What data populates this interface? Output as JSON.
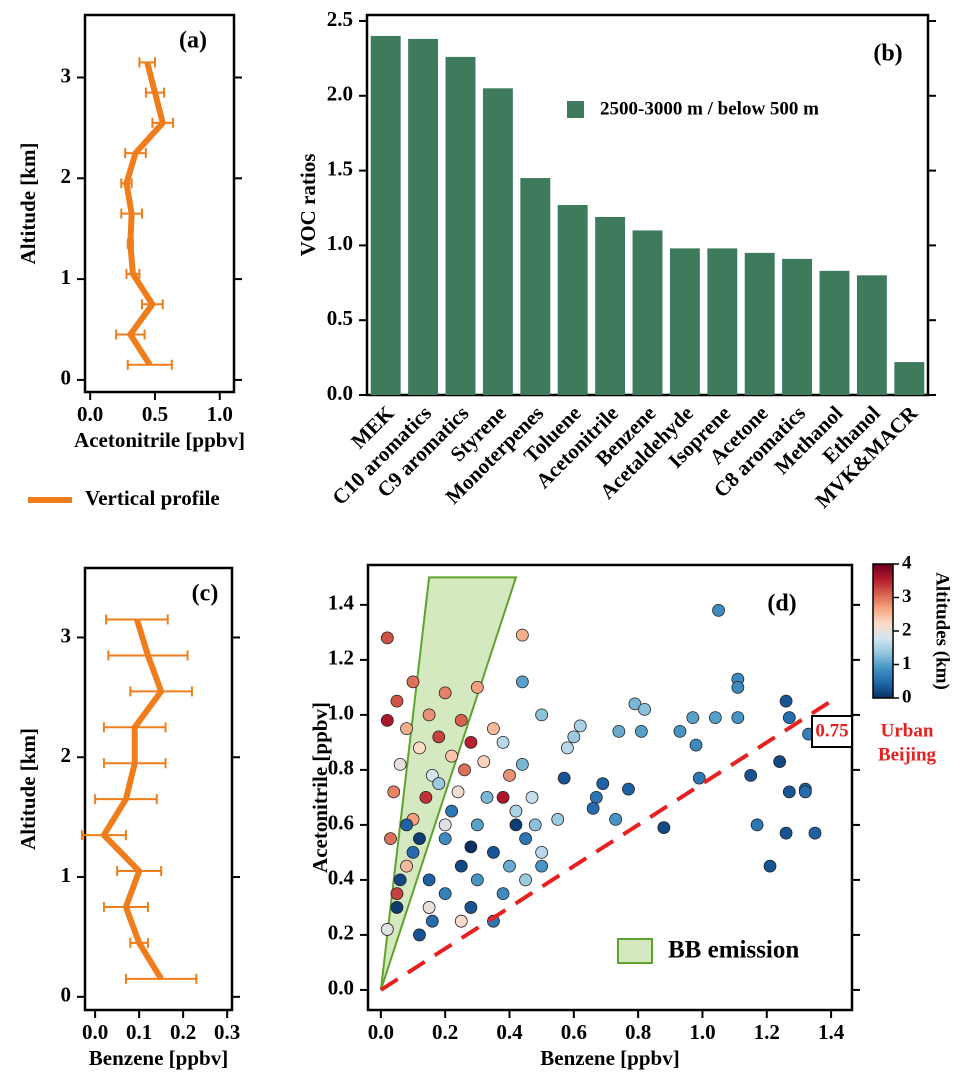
{
  "chart_data": [
    {
      "type": "profile",
      "panel_label": "(a)",
      "xlabel": "Acetonitrile [ppbv]",
      "ylabel": "Altitude [km]",
      "xlim": [
        -0.04,
        1.11
      ],
      "ylim": [
        -0.12,
        3.62
      ],
      "xticks": [
        {
          "value": 0,
          "label": "0.0"
        },
        {
          "value": 0.5,
          "label": "0.5"
        },
        {
          "value": 1,
          "label": "1.0"
        }
      ],
      "yticks": [
        0,
        1,
        2,
        3
      ],
      "y": [
        0.15,
        0.45,
        0.75,
        1.05,
        1.35,
        1.65,
        1.95,
        2.25,
        2.55,
        2.85,
        3.15
      ],
      "series": [
        {
          "name": "Vertical profile",
          "color": "#f07d1c",
          "values": [
            0.46,
            0.31,
            0.48,
            0.33,
            0.31,
            0.32,
            0.28,
            0.35,
            0.56,
            0.5,
            0.44
          ],
          "errors": [
            0.17,
            0.11,
            0.08,
            0.05,
            0.02,
            0.08,
            0.04,
            0.08,
            0.08,
            0.07,
            0.06
          ]
        }
      ]
    },
    {
      "type": "bar",
      "panel_label": "(b)",
      "ylabel": "VOC ratios",
      "color": "#3d7b5c",
      "legend_label": "2500-3000 m / below 500 m",
      "categories": [
        "MEK",
        "C10 aromatics",
        "C9 aromatics",
        "Styrene",
        "Monoterpenes",
        "Toluene",
        "Acetonitrile",
        "Benzene",
        "Acetaldehyde",
        "Isoprene",
        "Acetone",
        "C8 aromatics",
        "Methanol",
        "Ethanol",
        "MVK&MACR"
      ],
      "values": [
        2.4,
        2.38,
        2.26,
        2.05,
        1.45,
        1.27,
        1.19,
        1.1,
        0.98,
        0.98,
        0.95,
        0.91,
        0.83,
        0.8,
        0.22
      ],
      "ylim": [
        0,
        2.54
      ],
      "yticks": [
        {
          "value": 0,
          "label": "0.0"
        },
        {
          "value": 0.5,
          "label": "0.5"
        },
        {
          "value": 1,
          "label": "1.0"
        },
        {
          "value": 1.5,
          "label": "1.5"
        },
        {
          "value": 2,
          "label": "2.0"
        },
        {
          "value": 2.5,
          "label": "2.5"
        }
      ]
    },
    {
      "type": "profile",
      "panel_label": "(c)",
      "xlabel": "Benzene [ppbv]",
      "ylabel": "Altitude [km]",
      "xlim": [
        -0.023,
        0.311
      ],
      "ylim": [
        -0.11,
        3.58
      ],
      "xticks": [
        {
          "value": 0,
          "label": "0.0"
        },
        {
          "value": 0.1,
          "label": "0.1"
        },
        {
          "value": 0.2,
          "label": "0.2"
        },
        {
          "value": 0.3,
          "label": "0.3"
        }
      ],
      "yticks": [
        0,
        1,
        2,
        3
      ],
      "y": [
        0.15,
        0.45,
        0.75,
        1.05,
        1.35,
        1.65,
        1.95,
        2.25,
        2.55,
        2.85,
        3.15
      ],
      "series": [
        {
          "color": "#f07d1c",
          "values": [
            0.15,
            0.1,
            0.07,
            0.1,
            0.02,
            0.07,
            0.09,
            0.09,
            0.15,
            0.12,
            0.095
          ],
          "errors": [
            0.08,
            0.02,
            0.05,
            0.05,
            0.05,
            0.07,
            0.07,
            0.07,
            0.07,
            0.09,
            0.07
          ]
        }
      ]
    },
    {
      "type": "scatter",
      "panel_label": "(d)",
      "xlabel": "Benzene [ppbv]",
      "ylabel": "Acetonitrile [ppbv]",
      "xlim": [
        -0.04,
        1.465
      ],
      "ylim": [
        -0.073,
        1.545
      ],
      "xticks": [
        {
          "value": 0,
          "label": "0.0"
        },
        {
          "value": 0.2,
          "label": "0.2"
        },
        {
          "value": 0.4,
          "label": "0.4"
        },
        {
          "value": 0.6,
          "label": "0.6"
        },
        {
          "value": 0.8,
          "label": "0.8"
        },
        {
          "value": 1,
          "label": "1.0"
        },
        {
          "value": 1.2,
          "label": "1.2"
        },
        {
          "value": 1.4,
          "label": "1.4"
        }
      ],
      "yticks": [
        {
          "value": 0,
          "label": "0.0"
        },
        {
          "value": 0.2,
          "label": "0.2"
        },
        {
          "value": 0.4,
          "label": "0.4"
        },
        {
          "value": 0.6,
          "label": "0.6"
        },
        {
          "value": 0.8,
          "label": "0.8"
        },
        {
          "value": 1,
          "label": "1.0"
        },
        {
          "value": 1.2,
          "label": "1.2"
        },
        {
          "value": 1.4,
          "label": "1.4"
        }
      ],
      "regions": [
        {
          "name": "BB emission",
          "color": "#d4e9bf",
          "edge": "#5fa22d",
          "x": [
            0,
            0.15,
            0.42
          ],
          "y": [
            0,
            1.5,
            1.5
          ]
        }
      ],
      "ref_line": {
        "slope": 0.75,
        "color": "#e8201f",
        "note": [
          "Urban",
          "Beijing"
        ]
      },
      "colorbar": {
        "label": "Altitudes (km)",
        "lim": [
          0,
          4
        ],
        "ticks": [
          0,
          1,
          2,
          3,
          4
        ],
        "colors": [
          "#053061",
          "#2166ac",
          "#4393c3",
          "#92c5de",
          "#d1e5f0",
          "#fddbc7",
          "#f4a582",
          "#d6604d",
          "#b2182b",
          "#67001f"
        ]
      },
      "x": [
        0.05,
        0.1,
        0.15,
        0.2,
        0.25,
        0.3,
        0.08,
        0.18,
        0.12,
        0.22,
        0.28,
        0.02,
        0.35,
        0.06,
        0.16,
        0.26,
        0.32,
        0.04,
        0.14,
        0.24,
        0.1,
        0.2,
        0.03,
        0.08,
        0.05,
        0.15,
        0.02,
        0.25,
        0.38,
        0.4,
        0.1,
        0.2,
        0.3,
        0.35,
        0.45,
        0.25,
        0.15,
        0.05,
        0.12,
        0.2,
        0.3,
        0.4,
        0.48,
        0.42,
        0.33,
        0.22,
        0.08,
        0.28,
        0.38,
        0.45,
        0.5,
        0.47,
        0.44,
        0.5,
        0.44,
        0.38,
        0.18,
        0.06,
        0.16,
        0.35,
        0.12,
        0.28,
        0.5,
        0.42,
        1.05,
        1.11,
        1.11,
        1.26,
        0.79,
        0.82,
        0.97,
        1.04,
        1.11,
        1.27,
        0.93,
        0.74,
        0.81,
        0.62,
        0.6,
        0.58,
        0.98,
        1.33,
        1.24,
        1.15,
        0.99,
        0.57,
        0.69,
        0.77,
        0.67,
        0.66,
        1.32,
        1.27,
        1.32,
        0.73,
        0.88,
        0.55,
        1.17,
        1.26,
        1.35,
        1.21,
        0.44,
        0.02
      ],
      "y": [
        1.05,
        1.12,
        1.0,
        1.08,
        0.98,
        1.1,
        0.95,
        0.92,
        0.88,
        0.85,
        0.9,
        0.98,
        0.95,
        0.82,
        0.78,
        0.8,
        0.83,
        0.72,
        0.7,
        0.72,
        0.62,
        0.6,
        0.55,
        0.45,
        0.35,
        0.3,
        0.22,
        0.25,
        0.7,
        0.78,
        0.5,
        0.55,
        0.6,
        0.5,
        0.55,
        0.45,
        0.4,
        0.3,
        0.2,
        0.35,
        0.4,
        0.45,
        0.6,
        0.65,
        0.7,
        0.65,
        0.6,
        0.3,
        0.35,
        0.4,
        0.5,
        0.7,
        0.82,
        1.0,
        1.12,
        0.9,
        0.75,
        0.4,
        0.25,
        0.25,
        0.55,
        0.52,
        0.45,
        0.6,
        1.38,
        1.13,
        1.1,
        1.05,
        1.04,
        1.02,
        0.99,
        0.99,
        0.99,
        0.99,
        0.94,
        0.94,
        0.94,
        0.96,
        0.92,
        0.88,
        0.89,
        0.93,
        0.83,
        0.78,
        0.77,
        0.77,
        0.75,
        0.73,
        0.7,
        0.66,
        0.73,
        0.72,
        0.72,
        0.62,
        0.59,
        0.62,
        0.6,
        0.57,
        0.57,
        0.45,
        1.29,
        1.28
      ],
      "z": [
        3.2,
        3.0,
        2.8,
        2.9,
        3.1,
        2.7,
        2.6,
        3.3,
        2.2,
        2.4,
        3.5,
        3.6,
        2.5,
        2.0,
        1.8,
        3.0,
        2.3,
        2.9,
        3.4,
        2.1,
        2.7,
        1.9,
        3.0,
        2.5,
        3.3,
        2.0,
        1.9,
        2.2,
        3.6,
        2.8,
        0.5,
        0.8,
        1.0,
        0.3,
        0.6,
        0.2,
        0.4,
        0.1,
        0.3,
        0.7,
        0.9,
        1.1,
        1.3,
        1.5,
        1.2,
        0.6,
        0.4,
        0.3,
        0.8,
        1.4,
        1.6,
        1.7,
        1.2,
        1.3,
        1.0,
        1.6,
        1.4,
        0.2,
        0.5,
        0.6,
        0.1,
        0.0,
        0.9,
        0.1,
        0.8,
        0.8,
        0.8,
        0.3,
        1.2,
        1.3,
        1.0,
        1.0,
        0.9,
        0.5,
        0.9,
        1.1,
        1.0,
        1.5,
        1.4,
        1.6,
        0.8,
        0.7,
        0.2,
        0.3,
        0.6,
        0.3,
        0.4,
        0.4,
        0.6,
        0.5,
        0.4,
        0.3,
        0.5,
        0.9,
        0.2,
        1.4,
        0.6,
        0.3,
        0.4,
        0.3,
        2.6,
        3.2
      ]
    }
  ]
}
